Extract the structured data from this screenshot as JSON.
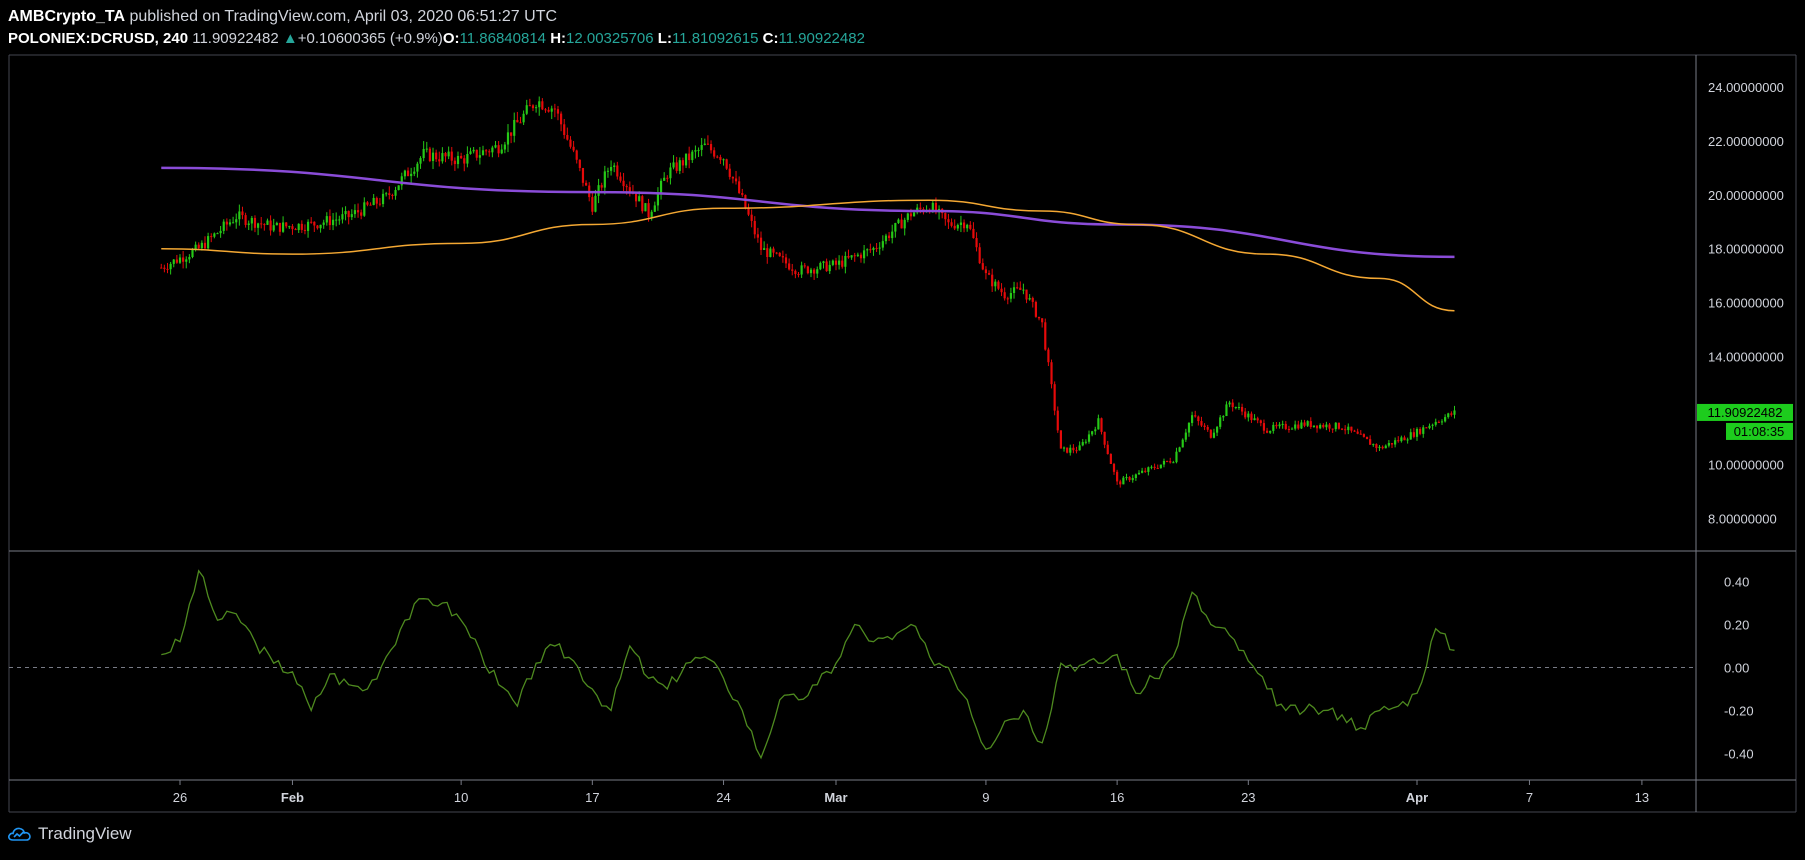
{
  "header": {
    "publisher": "AMBCrypto_TA",
    "published_text": "published on TradingView.com, April 03, 2020 06:51:27 UTC",
    "symbol": "POLONIEX:DCRUSD, 240",
    "last": "11.90922482",
    "change_arrow": "▲",
    "change": "+0.10600365 (+0.9%)",
    "o_label": "O:",
    "o_value": "11.86840814",
    "h_label": "H:",
    "h_value": "12.00325706",
    "l_label": "L:",
    "l_value": "11.81092615",
    "c_label": "C:",
    "c_value": "11.90922482"
  },
  "price_tag": {
    "value": "11.90922482",
    "countdown": "01:08:35"
  },
  "footer": {
    "brand": "TradingView",
    "logo": "tradingview-cloud-icon"
  },
  "colors": {
    "up": "#26c917",
    "down": "#e60a0a",
    "ma_purple": "#8a4cd8",
    "ma_orange": "#f4a833",
    "oscillator": "#4e8a1f",
    "tag_green": "#1dcc1d"
  },
  "chart_data": [
    {
      "type": "candlestick",
      "timeframe": "240",
      "x_ticks": [
        "26",
        "Feb",
        "10",
        "17",
        "24",
        "Mar",
        "9",
        "16",
        "23",
        "Apr",
        "7",
        "13"
      ],
      "x_tick_dates": [
        "2020-01-26",
        "2020-02-01",
        "2020-02-10",
        "2020-02-17",
        "2020-02-24",
        "2020-03-01",
        "2020-03-09",
        "2020-03-16",
        "2020-03-23",
        "2020-04-01",
        "2020-04-07",
        "2020-04-13"
      ],
      "y_ticks": [
        "24.00000000",
        "22.00000000",
        "20.00000000",
        "18.00000000",
        "16.00000000",
        "14.00000000",
        "12.00000000",
        "10.00000000",
        "8.00000000"
      ],
      "ylim": [
        6.9,
        25.0
      ],
      "price_path": [
        [
          "2020-01-25",
          17.3
        ],
        [
          "2020-01-27",
          18.0
        ],
        [
          "2020-01-29",
          19.2
        ],
        [
          "2020-01-31",
          18.8
        ],
        [
          "2020-02-02",
          18.9
        ],
        [
          "2020-02-04",
          19.2
        ],
        [
          "2020-02-06",
          19.9
        ],
        [
          "2020-02-08",
          21.5
        ],
        [
          "2020-02-10",
          21.3
        ],
        [
          "2020-02-12",
          21.8
        ],
        [
          "2020-02-14",
          23.5
        ],
        [
          "2020-02-15",
          23.2
        ],
        [
          "2020-02-16",
          21.5
        ],
        [
          "2020-02-17",
          19.6
        ],
        [
          "2020-02-18",
          21.2
        ],
        [
          "2020-02-20",
          19.3
        ],
        [
          "2020-02-21",
          20.8
        ],
        [
          "2020-02-23",
          21.8
        ],
        [
          "2020-02-24",
          21.4
        ],
        [
          "2020-02-25",
          19.8
        ],
        [
          "2020-02-26",
          18.0
        ],
        [
          "2020-02-28",
          17.2
        ],
        [
          "2020-03-01",
          17.4
        ],
        [
          "2020-03-03",
          18.0
        ],
        [
          "2020-03-05",
          19.3
        ],
        [
          "2020-03-06",
          19.6
        ],
        [
          "2020-03-07",
          18.9
        ],
        [
          "2020-03-08",
          19.0
        ],
        [
          "2020-03-09",
          17.0
        ],
        [
          "2020-03-10",
          16.3
        ],
        [
          "2020-03-11",
          16.5
        ],
        [
          "2020-03-12",
          15.2
        ],
        [
          "2020-03-13",
          10.5
        ],
        [
          "2020-03-14",
          10.6
        ],
        [
          "2020-03-15",
          11.6
        ],
        [
          "2020-03-16",
          9.3
        ],
        [
          "2020-03-17",
          9.6
        ],
        [
          "2020-03-19",
          10.2
        ],
        [
          "2020-03-20",
          11.8
        ],
        [
          "2020-03-21",
          11.1
        ],
        [
          "2020-03-22",
          12.3
        ],
        [
          "2020-03-24",
          11.3
        ],
        [
          "2020-03-26",
          11.5
        ],
        [
          "2020-03-28",
          11.4
        ],
        [
          "2020-03-30",
          10.6
        ],
        [
          "2020-03-31",
          10.9
        ],
        [
          "2020-04-01",
          11.2
        ],
        [
          "2020-04-02",
          11.6
        ],
        [
          "2020-04-03",
          11.91
        ]
      ],
      "moving_averages": [
        {
          "color": "#8a4cd8",
          "points": [
            [
              "2020-01-25",
              21.0
            ],
            [
              "2020-02-17",
              20.1
            ],
            [
              "2020-03-06",
              19.4
            ],
            [
              "2020-03-16",
              18.9
            ],
            [
              "2020-04-03",
              17.7
            ]
          ]
        },
        {
          "color": "#f4a833",
          "points": [
            [
              "2020-01-25",
              18.0
            ],
            [
              "2020-02-01",
              17.8
            ],
            [
              "2020-02-10",
              18.2
            ],
            [
              "2020-02-17",
              18.9
            ],
            [
              "2020-02-24",
              19.5
            ],
            [
              "2020-03-06",
              19.8
            ],
            [
              "2020-03-12",
              19.4
            ],
            [
              "2020-03-17",
              18.9
            ],
            [
              "2020-03-24",
              17.8
            ],
            [
              "2020-03-30",
              16.9
            ],
            [
              "2020-04-03",
              15.7
            ]
          ]
        }
      ],
      "last_price": 11.90922482
    },
    {
      "type": "line",
      "x_ticks": [
        "26",
        "Feb",
        "10",
        "17",
        "24",
        "Mar",
        "9",
        "16",
        "23",
        "Apr",
        "7",
        "13"
      ],
      "y_ticks": [
        "0.40",
        "0.20",
        "0.00",
        "-0.20",
        "-0.40"
      ],
      "ylim": [
        -0.5,
        0.5
      ],
      "zero_line": true,
      "series": [
        {
          "color": "#4e8a1f",
          "values": [
            [
              "2020-01-25",
              0.06
            ],
            [
              "2020-01-26",
              0.12
            ],
            [
              "2020-01-27",
              0.45
            ],
            [
              "2020-01-28",
              0.22
            ],
            [
              "2020-01-29",
              0.25
            ],
            [
              "2020-01-30",
              0.12
            ],
            [
              "2020-01-31",
              0.02
            ],
            [
              "2020-02-01",
              -0.02
            ],
            [
              "2020-02-02",
              -0.2
            ],
            [
              "2020-02-03",
              -0.03
            ],
            [
              "2020-02-04",
              -0.08
            ],
            [
              "2020-02-05",
              -0.1
            ],
            [
              "2020-02-06",
              0.05
            ],
            [
              "2020-02-07",
              0.22
            ],
            [
              "2020-02-08",
              0.32
            ],
            [
              "2020-02-09",
              0.3
            ],
            [
              "2020-02-10",
              0.22
            ],
            [
              "2020-02-11",
              0.08
            ],
            [
              "2020-02-12",
              -0.08
            ],
            [
              "2020-02-13",
              -0.18
            ],
            [
              "2020-02-14",
              0.02
            ],
            [
              "2020-02-15",
              0.1
            ],
            [
              "2020-02-16",
              0.03
            ],
            [
              "2020-02-17",
              -0.1
            ],
            [
              "2020-02-18",
              -0.2
            ],
            [
              "2020-02-19",
              0.1
            ],
            [
              "2020-02-20",
              -0.05
            ],
            [
              "2020-02-21",
              -0.1
            ],
            [
              "2020-02-22",
              0.02
            ],
            [
              "2020-02-23",
              0.05
            ],
            [
              "2020-02-24",
              -0.05
            ],
            [
              "2020-02-25",
              -0.2
            ],
            [
              "2020-02-26",
              -0.42
            ],
            [
              "2020-02-27",
              -0.15
            ],
            [
              "2020-02-28",
              -0.15
            ],
            [
              "2020-02-29",
              -0.08
            ],
            [
              "2020-03-01",
              0.02
            ],
            [
              "2020-03-02",
              0.2
            ],
            [
              "2020-03-03",
              0.12
            ],
            [
              "2020-03-04",
              0.13
            ],
            [
              "2020-03-05",
              0.2
            ],
            [
              "2020-03-06",
              0.05
            ],
            [
              "2020-03-07",
              0.0
            ],
            [
              "2020-03-08",
              -0.15
            ],
            [
              "2020-03-09",
              -0.38
            ],
            [
              "2020-03-10",
              -0.25
            ],
            [
              "2020-03-11",
              -0.2
            ],
            [
              "2020-03-12",
              -0.35
            ],
            [
              "2020-03-13",
              0.02
            ],
            [
              "2020-03-14",
              0.01
            ],
            [
              "2020-03-15",
              0.02
            ],
            [
              "2020-03-16",
              0.06
            ],
            [
              "2020-03-17",
              -0.12
            ],
            [
              "2020-03-18",
              -0.05
            ],
            [
              "2020-03-19",
              0.05
            ],
            [
              "2020-03-20",
              0.35
            ],
            [
              "2020-03-21",
              0.2
            ],
            [
              "2020-03-22",
              0.15
            ],
            [
              "2020-03-23",
              0.03
            ],
            [
              "2020-03-24",
              -0.1
            ],
            [
              "2020-03-25",
              -0.2
            ],
            [
              "2020-03-26",
              -0.2
            ],
            [
              "2020-03-27",
              -0.2
            ],
            [
              "2020-03-28",
              -0.22
            ],
            [
              "2020-03-29",
              -0.28
            ],
            [
              "2020-03-30",
              -0.2
            ],
            [
              "2020-03-31",
              -0.18
            ],
            [
              "2020-04-01",
              -0.12
            ],
            [
              "2020-04-02",
              0.18
            ],
            [
              "2020-04-03",
              0.08
            ]
          ]
        }
      ]
    }
  ]
}
